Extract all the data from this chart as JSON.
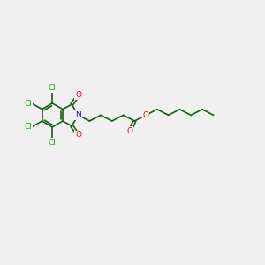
{
  "background_color": "#f0f0f0",
  "bond_color": "#1a5c1a",
  "bond_width": 1.2,
  "n_color": "#1a1acc",
  "o_color": "#cc1111",
  "cl_color": "#11aa11",
  "figsize": [
    3.0,
    3.0
  ],
  "dpi": 100,
  "xlim": [
    0,
    12
  ],
  "ylim": [
    0,
    10
  ]
}
